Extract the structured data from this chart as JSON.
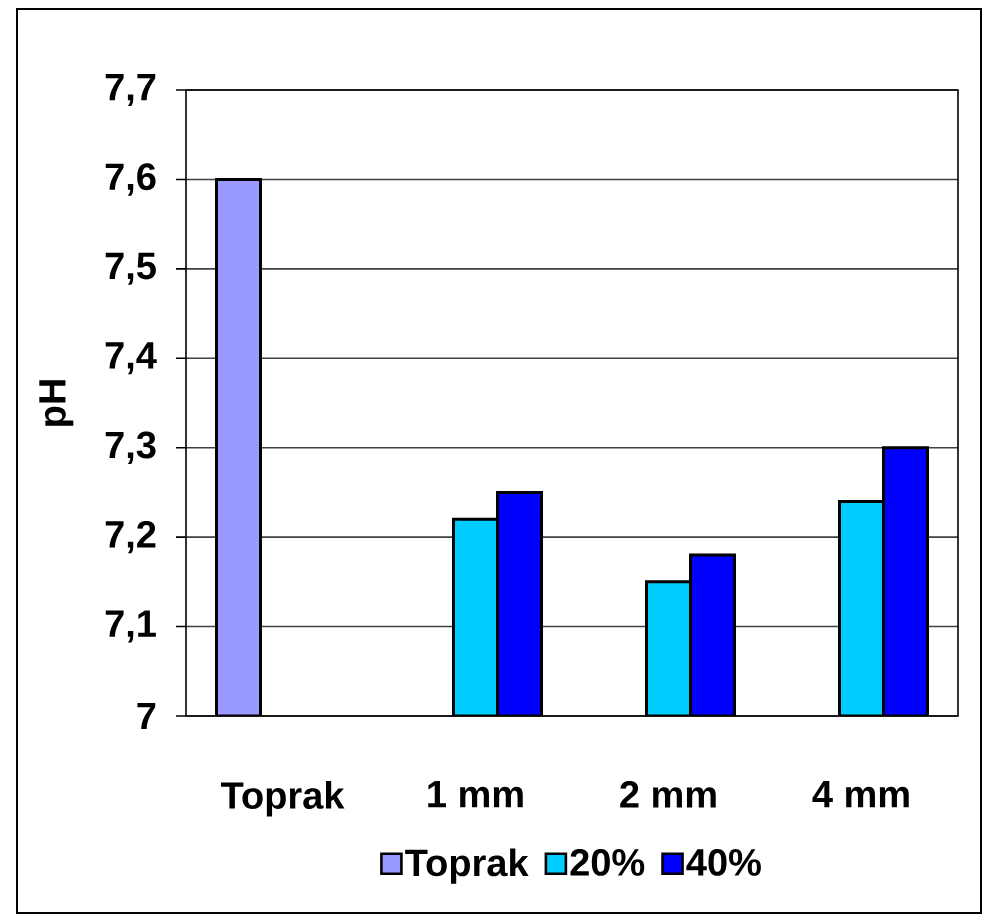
{
  "chart_data": {
    "type": "bar",
    "ylabel": "pH",
    "categories": [
      "Toprak",
      "1 mm",
      "2 mm",
      "4 mm"
    ],
    "series": [
      {
        "name": "Toprak",
        "color": "#9999ff",
        "values": [
          7.6,
          null,
          null,
          null
        ]
      },
      {
        "name": "20%",
        "color": "#00ccff",
        "values": [
          null,
          7.22,
          7.15,
          7.24
        ]
      },
      {
        "name": "40%",
        "color": "#0000ff",
        "values": [
          null,
          7.25,
          7.18,
          7.3
        ]
      }
    ],
    "ylim": [
      7,
      7.7
    ],
    "yticks": [
      7,
      {
        "value": 7.1,
        "label": "7,1"
      },
      {
        "value": 7.2,
        "label": "7,2"
      },
      {
        "value": 7.3,
        "label": "7,3"
      },
      {
        "value": 7.4,
        "label": "7,4"
      },
      {
        "value": 7.5,
        "label": "7,5"
      },
      {
        "value": 7.6,
        "label": "7,6"
      },
      {
        "value": 7.7,
        "label": "7,7"
      }
    ],
    "grid": "y",
    "legend": "bottom"
  }
}
